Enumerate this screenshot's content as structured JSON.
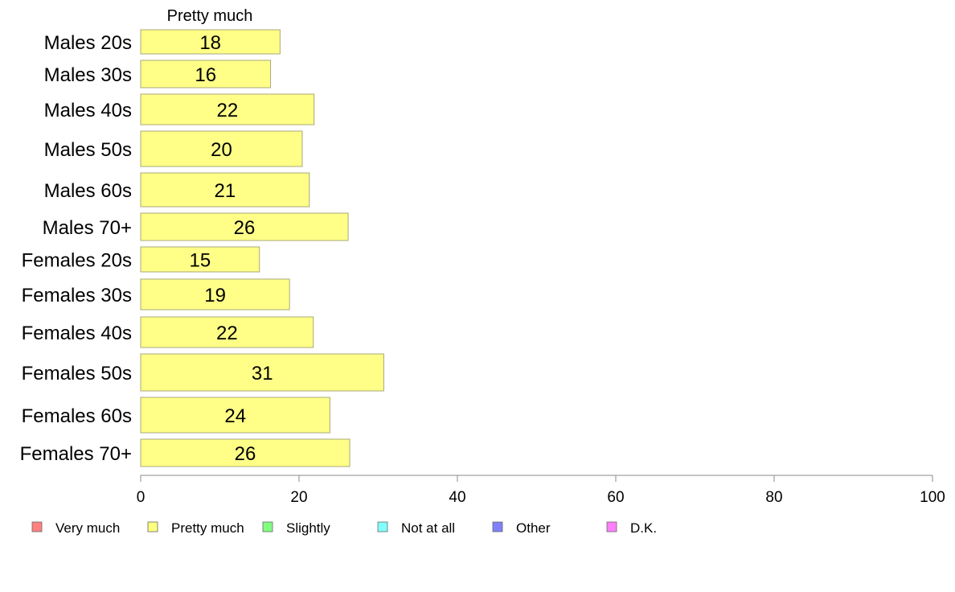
{
  "chart_data": {
    "type": "bar",
    "orientation": "horizontal",
    "column_header": "Pretty much",
    "categories": [
      "Males 20s",
      "Males 30s",
      "Males 40s",
      "Males 50s",
      "Males 60s",
      "Males 70+",
      "Females 20s",
      "Females 30s",
      "Females 40s",
      "Females 50s",
      "Females 60s",
      "Females 70+"
    ],
    "values": [
      17.6,
      16.4,
      21.9,
      20.4,
      21.3,
      26.2,
      15.0,
      18.8,
      21.8,
      30.7,
      23.9,
      26.4
    ],
    "value_labels": [
      "18",
      "16",
      "22",
      "20",
      "21",
      "26",
      "15",
      "19",
      "22",
      "31",
      "24",
      "26"
    ],
    "xlim": [
      0,
      100
    ],
    "xticks": [
      0,
      20,
      40,
      60,
      80,
      100
    ],
    "bar_color": "#ffff88",
    "bar_stroke": "#a8a878",
    "grid": false,
    "legend": {
      "position": "bottom",
      "items": [
        {
          "label": "Very much",
          "color": "#ff8080"
        },
        {
          "label": "Pretty much",
          "color": "#ffff80"
        },
        {
          "label": "Slightly",
          "color": "#80ff80"
        },
        {
          "label": "Not at all",
          "color": "#80ffff"
        },
        {
          "label": "Other",
          "color": "#8080ff"
        },
        {
          "label": "D.K.",
          "color": "#ff80ff"
        }
      ]
    }
  }
}
